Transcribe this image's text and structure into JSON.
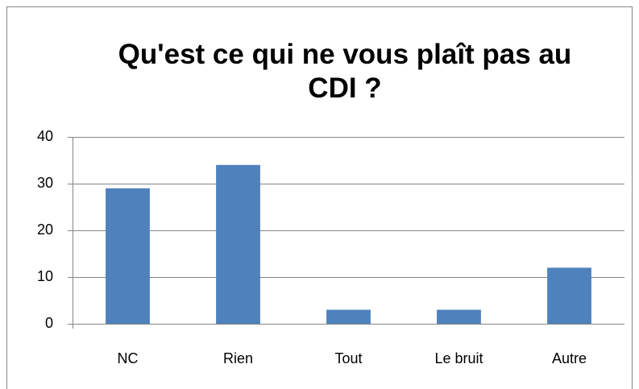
{
  "chart_data": {
    "type": "bar",
    "title": "Qu'est ce qui ne vous plaît pas au CDI ?",
    "categories": [
      "NC",
      "Rien",
      "Tout",
      "Le bruit",
      "Autre"
    ],
    "values": [
      29,
      34,
      3,
      3,
      12
    ],
    "color": "#4f81bd",
    "ylim": [
      0,
      40
    ],
    "yticks": [
      0,
      10,
      20,
      30,
      40
    ],
    "grid": true
  }
}
